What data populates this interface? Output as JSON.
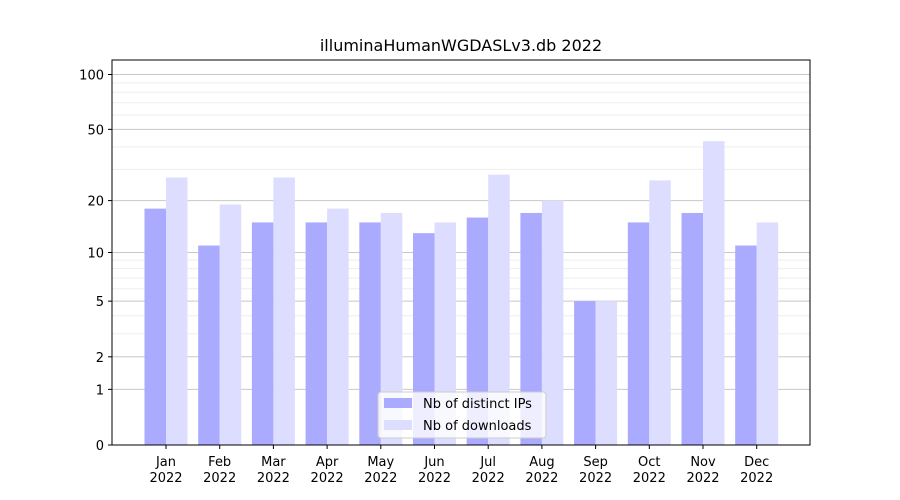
{
  "chart_data": {
    "type": "bar",
    "title": "illuminaHumanWGDASLv3.db 2022",
    "xlabel": "",
    "ylabel": "",
    "yscale": "log(1+y)",
    "ylim": [
      0,
      120
    ],
    "yticks": [
      0,
      1,
      2,
      5,
      10,
      20,
      50,
      100
    ],
    "grid": true,
    "legend_position": "bottom-center",
    "categories": [
      [
        "Jan",
        "2022"
      ],
      [
        "Feb",
        "2022"
      ],
      [
        "Mar",
        "2022"
      ],
      [
        "Apr",
        "2022"
      ],
      [
        "May",
        "2022"
      ],
      [
        "Jun",
        "2022"
      ],
      [
        "Jul",
        "2022"
      ],
      [
        "Aug",
        "2022"
      ],
      [
        "Sep",
        "2022"
      ],
      [
        "Oct",
        "2022"
      ],
      [
        "Nov",
        "2022"
      ],
      [
        "Dec",
        "2022"
      ]
    ],
    "series": [
      {
        "name": "Nb of distinct IPs",
        "color": "#aaaaff",
        "values": [
          18,
          11,
          15,
          15,
          15,
          13,
          16,
          17,
          5,
          15,
          17,
          11
        ]
      },
      {
        "name": "Nb of downloads",
        "color": "#ddddff",
        "values": [
          27,
          19,
          27,
          18,
          17,
          15,
          28,
          20,
          5,
          26,
          43,
          15
        ]
      }
    ]
  }
}
